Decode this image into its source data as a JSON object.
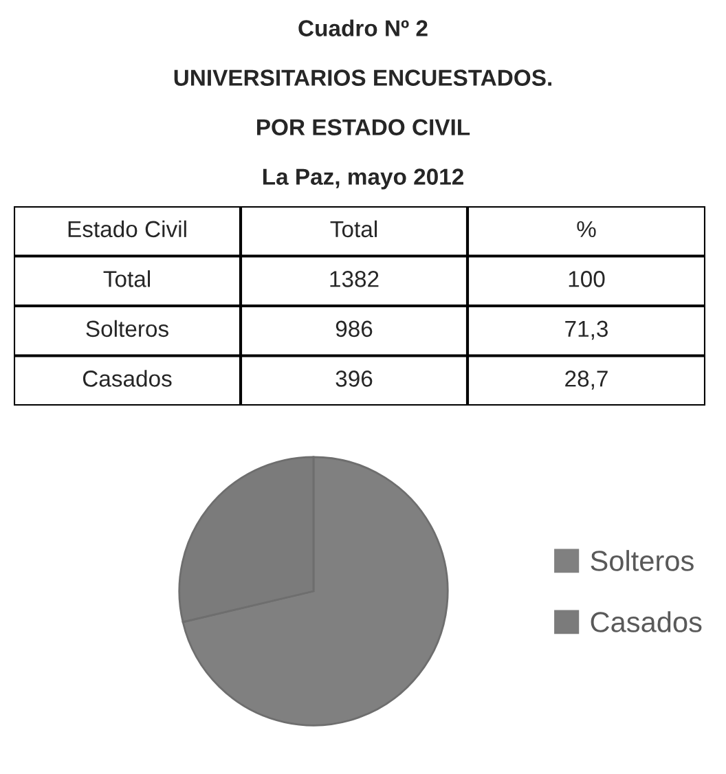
{
  "chart_data": {
    "type": "pie",
    "title": "Cuadro Nº 2",
    "subtitle": "UNIVERSITARIOS ENCUESTADOS.\nPOR ESTADO CIVIL\nLa Paz, mayo 2012",
    "categories": [
      "Solteros",
      "Casados"
    ],
    "values": [
      71.3,
      28.7
    ],
    "colors": [
      "#808080",
      "#7b7b7b"
    ],
    "legend": "right",
    "annotations": [
      "Estado Civil",
      "Total",
      "%",
      "Total",
      "1382",
      "100",
      "986",
      "71,3",
      "396",
      "28,7"
    ]
  }
}
